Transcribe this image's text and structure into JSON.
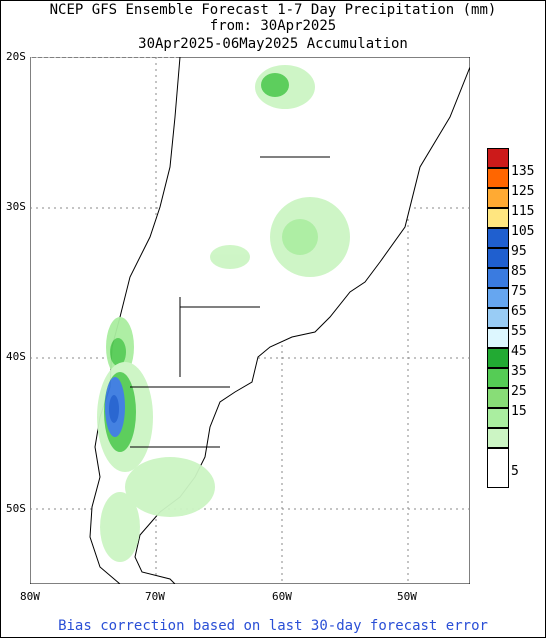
{
  "title": {
    "line1": "NCEP GFS Ensemble Forecast 1-7 Day Precipitation (mm)",
    "line2": "from: 30Apr2025",
    "line3": "30Apr2025-06May2025 Accumulation"
  },
  "axes": {
    "lat_labels": [
      "20S",
      "30S",
      "40S",
      "50S"
    ],
    "lon_labels": [
      "80W",
      "70W",
      "60W",
      "50W"
    ]
  },
  "legend": {
    "colors": [
      "#cc1a1a",
      "#ff6600",
      "#ffaa33",
      "#ffe680",
      "#1f5fcf",
      "#3a7be0",
      "#66a6f0",
      "#99ccf5",
      "#ddf7ff",
      "#22aa33",
      "#55cc55",
      "#88dd77",
      "#aaeea0",
      "#ccf5c4",
      "#ffffff"
    ],
    "labels": [
      "135",
      "125",
      "115",
      "105",
      "95",
      "85",
      "75",
      "65",
      "55",
      "45",
      "35",
      "25",
      "15",
      "5"
    ]
  },
  "footer": "Bias correction based on last 30-day forecast error"
}
